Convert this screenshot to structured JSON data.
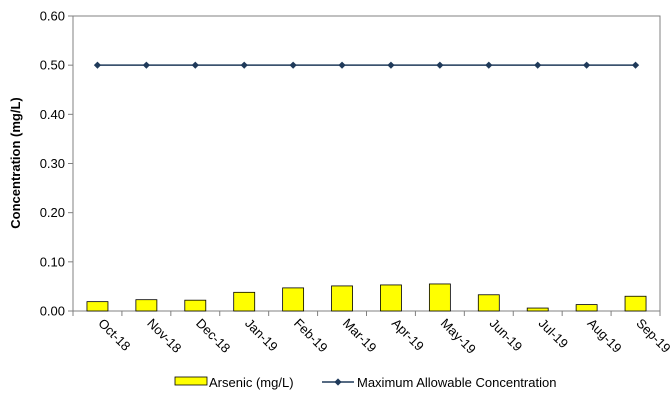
{
  "chart_data": {
    "type": "bar",
    "categories": [
      "Oct-18",
      "Nov-18",
      "Dec-18",
      "Jan-19",
      "Feb-19",
      "Mar-19",
      "Apr-19",
      "May-19",
      "Jun-19",
      "Jul-19",
      "Aug-19",
      "Sep-19"
    ],
    "series": [
      {
        "name": "Arsenic (mg/L)",
        "type": "bar",
        "color": "#FFFF00",
        "values": [
          0.019,
          0.023,
          0.022,
          0.038,
          0.047,
          0.051,
          0.053,
          0.055,
          0.033,
          0.006,
          0.013,
          0.03
        ]
      },
      {
        "name": "Maximum Allowable Concentration",
        "type": "line",
        "color": "#1F3A5A",
        "marker": "diamond",
        "values": [
          0.5,
          0.5,
          0.5,
          0.5,
          0.5,
          0.5,
          0.5,
          0.5,
          0.5,
          0.5,
          0.5,
          0.5
        ]
      }
    ],
    "title": "",
    "xlabel": "",
    "ylabel": "Concentration (mg/L)",
    "ylim": [
      0,
      0.6
    ],
    "yticks": [
      "0.00",
      "0.10",
      "0.20",
      "0.30",
      "0.40",
      "0.50",
      "0.60"
    ],
    "grid": false,
    "legend_position": "bottom"
  }
}
